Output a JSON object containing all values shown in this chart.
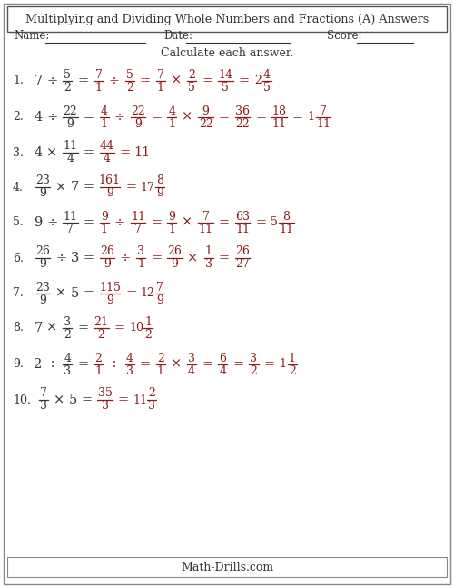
{
  "title": "Multiplying and Dividing Whole Numbers and Fractions (A) Answers",
  "subtitle": "Calculate each answer.",
  "footer": "Math-Drills.com",
  "bg_color": "#ffffff",
  "text_color": "#333333",
  "red_color": "#8B1A1A",
  "problems": [
    {
      "num": "1.",
      "line1": [
        {
          "t": "7",
          "c": "k"
        },
        {
          "t": "÷",
          "c": "k"
        },
        {
          "f": [
            "5",
            "2"
          ],
          "c": "k"
        },
        {
          "t": "=",
          "c": "k"
        },
        {
          "f": [
            "7",
            "1"
          ],
          "c": "r"
        },
        {
          "t": "÷",
          "c": "r"
        },
        {
          "f": [
            "5",
            "2"
          ],
          "c": "r"
        },
        {
          "t": "=",
          "c": "r"
        },
        {
          "f": [
            "7",
            "1"
          ],
          "c": "r"
        },
        {
          "t": "×",
          "c": "r"
        },
        {
          "f": [
            "2",
            "5"
          ],
          "c": "r"
        },
        {
          "t": "=",
          "c": "r"
        },
        {
          "f": [
            "14",
            "5"
          ],
          "c": "r"
        },
        {
          "t": "=",
          "c": "r"
        },
        {
          "m": [
            "2",
            "4",
            "5"
          ],
          "c": "r"
        }
      ]
    },
    {
      "num": "2.",
      "line1": [
        {
          "t": "4",
          "c": "k"
        },
        {
          "t": "÷",
          "c": "k"
        },
        {
          "f": [
            "22",
            "9"
          ],
          "c": "k"
        },
        {
          "t": "=",
          "c": "k"
        },
        {
          "f": [
            "4",
            "1"
          ],
          "c": "r"
        },
        {
          "t": "÷",
          "c": "r"
        },
        {
          "f": [
            "22",
            "9"
          ],
          "c": "r"
        },
        {
          "t": "=",
          "c": "r"
        },
        {
          "f": [
            "4",
            "1"
          ],
          "c": "r"
        },
        {
          "t": "×",
          "c": "r"
        },
        {
          "f": [
            "9",
            "22"
          ],
          "c": "r"
        },
        {
          "t": "=",
          "c": "r"
        },
        {
          "f": [
            "36",
            "22"
          ],
          "c": "r"
        },
        {
          "t": "=",
          "c": "r"
        },
        {
          "f": [
            "18",
            "11"
          ],
          "c": "r"
        },
        {
          "t": "=",
          "c": "r"
        },
        {
          "m": [
            "1",
            "7",
            "11"
          ],
          "c": "r"
        }
      ]
    },
    {
      "num": "3.",
      "line1": [
        {
          "t": "4",
          "c": "k"
        },
        {
          "t": "×",
          "c": "k"
        },
        {
          "f": [
            "11",
            "4"
          ],
          "c": "k"
        },
        {
          "t": "=",
          "c": "k"
        },
        {
          "f": [
            "44",
            "4"
          ],
          "c": "r"
        },
        {
          "t": "=",
          "c": "r"
        },
        {
          "t": "11",
          "c": "r"
        }
      ]
    },
    {
      "num": "4.",
      "line1": [
        {
          "f": [
            "23",
            "9"
          ],
          "c": "k"
        },
        {
          "t": "×",
          "c": "k"
        },
        {
          "t": "7",
          "c": "k"
        },
        {
          "t": "=",
          "c": "k"
        },
        {
          "f": [
            "161",
            "9"
          ],
          "c": "r"
        },
        {
          "t": "=",
          "c": "r"
        },
        {
          "m": [
            "17",
            "8",
            "9"
          ],
          "c": "r"
        }
      ]
    },
    {
      "num": "5.",
      "line1": [
        {
          "t": "9",
          "c": "k"
        },
        {
          "t": "÷",
          "c": "k"
        },
        {
          "f": [
            "11",
            "7"
          ],
          "c": "k"
        },
        {
          "t": "=",
          "c": "k"
        },
        {
          "f": [
            "9",
            "1"
          ],
          "c": "r"
        },
        {
          "t": "÷",
          "c": "r"
        },
        {
          "f": [
            "11",
            "7"
          ],
          "c": "r"
        },
        {
          "t": "=",
          "c": "r"
        },
        {
          "f": [
            "9",
            "1"
          ],
          "c": "r"
        },
        {
          "t": "×",
          "c": "r"
        },
        {
          "f": [
            "7",
            "11"
          ],
          "c": "r"
        },
        {
          "t": "=",
          "c": "r"
        },
        {
          "f": [
            "63",
            "11"
          ],
          "c": "r"
        },
        {
          "t": "=",
          "c": "r"
        },
        {
          "m": [
            "5",
            "8",
            "11"
          ],
          "c": "r"
        }
      ]
    },
    {
      "num": "6.",
      "line1": [
        {
          "f": [
            "26",
            "9"
          ],
          "c": "k"
        },
        {
          "t": "÷",
          "c": "k"
        },
        {
          "t": "3",
          "c": "k"
        },
        {
          "t": "=",
          "c": "k"
        },
        {
          "f": [
            "26",
            "9"
          ],
          "c": "r"
        },
        {
          "t": "÷",
          "c": "r"
        },
        {
          "f": [
            "3",
            "1"
          ],
          "c": "r"
        },
        {
          "t": "=",
          "c": "r"
        },
        {
          "f": [
            "26",
            "9"
          ],
          "c": "r"
        },
        {
          "t": "×",
          "c": "r"
        },
        {
          "f": [
            "1",
            "3"
          ],
          "c": "r"
        },
        {
          "t": "=",
          "c": "r"
        },
        {
          "f": [
            "26",
            "27"
          ],
          "c": "r"
        }
      ]
    },
    {
      "num": "7.",
      "line1": [
        {
          "f": [
            "23",
            "9"
          ],
          "c": "k"
        },
        {
          "t": "×",
          "c": "k"
        },
        {
          "t": "5",
          "c": "k"
        },
        {
          "t": "=",
          "c": "k"
        },
        {
          "f": [
            "115",
            "9"
          ],
          "c": "r"
        },
        {
          "t": "=",
          "c": "r"
        },
        {
          "m": [
            "12",
            "7",
            "9"
          ],
          "c": "r"
        }
      ]
    },
    {
      "num": "8.",
      "line1": [
        {
          "t": "7",
          "c": "k"
        },
        {
          "t": "×",
          "c": "k"
        },
        {
          "f": [
            "3",
            "2"
          ],
          "c": "k"
        },
        {
          "t": "=",
          "c": "k"
        },
        {
          "f": [
            "21",
            "2"
          ],
          "c": "r"
        },
        {
          "t": "=",
          "c": "r"
        },
        {
          "m": [
            "10",
            "1",
            "2"
          ],
          "c": "r"
        }
      ]
    },
    {
      "num": "9.",
      "line1": [
        {
          "t": "2",
          "c": "k"
        },
        {
          "t": "÷",
          "c": "k"
        },
        {
          "f": [
            "4",
            "3"
          ],
          "c": "k"
        },
        {
          "t": "=",
          "c": "k"
        },
        {
          "f": [
            "2",
            "1"
          ],
          "c": "r"
        },
        {
          "t": "÷",
          "c": "r"
        },
        {
          "f": [
            "4",
            "3"
          ],
          "c": "r"
        },
        {
          "t": "=",
          "c": "r"
        },
        {
          "f": [
            "2",
            "1"
          ],
          "c": "r"
        },
        {
          "t": "×",
          "c": "r"
        },
        {
          "f": [
            "3",
            "4"
          ],
          "c": "r"
        },
        {
          "t": "=",
          "c": "r"
        },
        {
          "f": [
            "6",
            "4"
          ],
          "c": "r"
        },
        {
          "t": "=",
          "c": "r"
        },
        {
          "f": [
            "3",
            "2"
          ],
          "c": "r"
        },
        {
          "t": "=",
          "c": "r"
        },
        {
          "m": [
            "1",
            "1",
            "2"
          ],
          "c": "r"
        }
      ]
    },
    {
      "num": "10.",
      "line1": [
        {
          "f": [
            "7",
            "3"
          ],
          "c": "k"
        },
        {
          "t": "×",
          "c": "k"
        },
        {
          "t": "5",
          "c": "k"
        },
        {
          "t": "=",
          "c": "k"
        },
        {
          "f": [
            "35",
            "3"
          ],
          "c": "r"
        },
        {
          "t": "=",
          "c": "r"
        },
        {
          "m": [
            "11",
            "2",
            "3"
          ],
          "c": "r"
        }
      ]
    }
  ]
}
